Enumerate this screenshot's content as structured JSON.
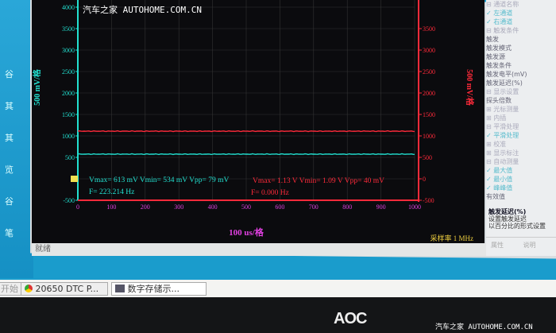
{
  "watermark": "汽车之家 AUTOHOME.COM.CN",
  "desktop_icons": [
    "谷",
    "其",
    "其",
    "览",
    "谷",
    "笔"
  ],
  "scope": {
    "left_axis": {
      "label": "500 mV/格",
      "color": "#22e0d0",
      "ticks": [
        -500,
        0,
        500,
        1000,
        1500,
        2000,
        2500,
        3000,
        3500,
        4000
      ]
    },
    "right_axis": {
      "label": "500 mV/格",
      "color": "#ff2a3a",
      "ticks": [
        -500,
        0,
        500,
        1000,
        1500,
        2000,
        2500,
        3000,
        3500
      ]
    },
    "x_axis": {
      "label": "100 us/格",
      "color": "#e040e0",
      "ticks": [
        0,
        100,
        200,
        300,
        400,
        500,
        600,
        700,
        800,
        900,
        1000
      ]
    },
    "ylim": [
      -500,
      4200
    ],
    "xlim": [
      0,
      1000
    ],
    "cyan_level_mV": 575,
    "red_level_mV": 1110,
    "trigger_marker": "T",
    "ch1": {
      "stats": "Vmax= 613 mV  Vmin= 534 mV  Vpp= 79 mV",
      "freq": "F= 223.214 Hz"
    },
    "ch2": {
      "stats": "Vmax= 1.13 V  Vmin= 1.09 V  Vpp= 40 mV",
      "freq": "F= 0.000 Hz"
    },
    "sample_rate": "采样率 1 MHz"
  },
  "status_text": "就绪",
  "panel": {
    "items": [
      {
        "t": "⊟ 通道名称",
        "c": "grp"
      },
      {
        "t": "  ✓ 左通道",
        "c": "chk"
      },
      {
        "t": "  ✓ 右通道",
        "c": "chk"
      },
      {
        "t": "⊟ 触发条件",
        "c": "grp"
      },
      {
        "t": "   触发",
        "c": ""
      },
      {
        "t": "   触发模式",
        "c": ""
      },
      {
        "t": "   触发源",
        "c": ""
      },
      {
        "t": "   触发条件",
        "c": ""
      },
      {
        "t": "   触发电平(mV)",
        "c": ""
      },
      {
        "t": "   触发延迟(%)",
        "c": ""
      },
      {
        "t": "⊟ 显示设置",
        "c": "grp"
      },
      {
        "t": "  探头倍数",
        "c": ""
      },
      {
        "t": "⊞ 光标测量",
        "c": "grp"
      },
      {
        "t": "⊞ 内插",
        "c": "grp"
      },
      {
        "t": "⊟ 平滑处理",
        "c": "grp"
      },
      {
        "t": "  ✓ 平滑处理",
        "c": "chk"
      },
      {
        "t": "⊞ 校准",
        "c": "grp"
      },
      {
        "t": "⊞ 显示标注",
        "c": "grp"
      },
      {
        "t": "⊟ 自动测量",
        "c": "grp"
      },
      {
        "t": "  ✓ 最大值",
        "c": "chk"
      },
      {
        "t": "  ✓ 最小值",
        "c": "chk"
      },
      {
        "t": "  ✓ 峰峰值",
        "c": "chk"
      },
      {
        "t": "    有效值",
        "c": ""
      }
    ],
    "desc_title": "触发延迟(%)",
    "desc_line1": "设置触发延迟",
    "desc_line2": "以百分比的形式设置",
    "bottom_left": "属性",
    "bottom_right": "说明"
  },
  "taskbar": {
    "start": "开始",
    "task1": "20650 DTC P...",
    "task2": "数字存储示..."
  },
  "monitor_brand": "AOC"
}
